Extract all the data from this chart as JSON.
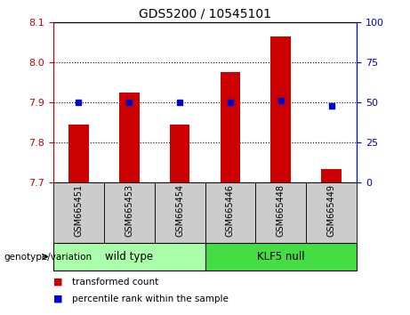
{
  "title": "GDS5200 / 10545101",
  "categories": [
    "GSM665451",
    "GSM665453",
    "GSM665454",
    "GSM665446",
    "GSM665448",
    "GSM665449"
  ],
  "transformed_counts": [
    7.845,
    7.925,
    7.845,
    7.975,
    8.065,
    7.735
  ],
  "percentile_ranks": [
    50,
    50,
    50,
    50,
    51,
    48
  ],
  "ylim_left": [
    7.7,
    8.1
  ],
  "ylim_right": [
    0,
    100
  ],
  "yticks_left": [
    7.7,
    7.8,
    7.9,
    8.0,
    8.1
  ],
  "yticks_right": [
    0,
    25,
    50,
    75,
    100
  ],
  "bar_color": "#cc0000",
  "dot_color": "#0000cc",
  "bar_bottom": 7.7,
  "group_spans": [
    [
      -0.5,
      2.5,
      "wild type",
      "#aaffaa"
    ],
    [
      2.5,
      5.5,
      "KLF5 null",
      "#44dd44"
    ]
  ],
  "genotype_label": "genotype/variation",
  "legend_items": [
    {
      "label": "transformed count",
      "color": "#cc0000"
    },
    {
      "label": "percentile rank within the sample",
      "color": "#0000cc"
    }
  ],
  "axis_color_left": "#cc0000",
  "axis_color_right": "#0000cc",
  "xlabel_bg": "#cccccc",
  "bar_width": 0.4
}
